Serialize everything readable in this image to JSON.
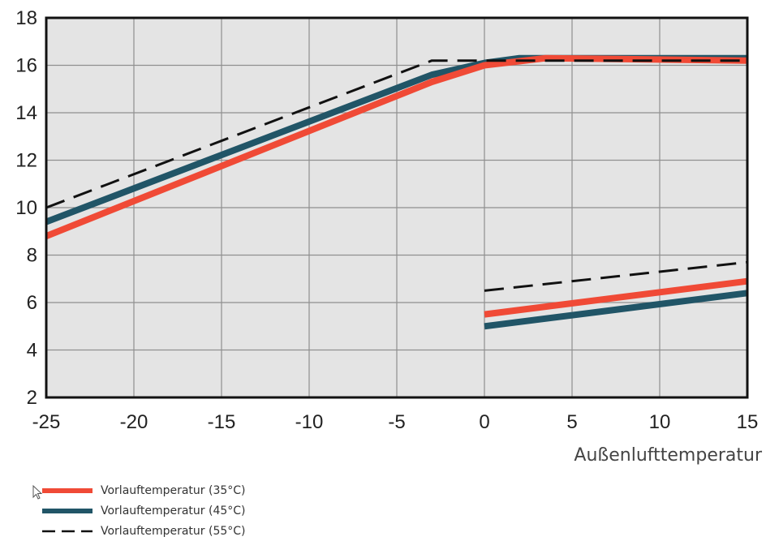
{
  "chart_data": {
    "type": "line",
    "xlabel": "Außenlufttemperatur",
    "ylabel": "",
    "xlim": [
      -25,
      15
    ],
    "ylim": [
      2,
      18
    ],
    "xticks": [
      -25,
      -20,
      -15,
      -10,
      -5,
      0,
      5,
      10,
      15
    ],
    "yticks": [
      2,
      4,
      6,
      8,
      10,
      12,
      14,
      16,
      18
    ],
    "grid": true,
    "legend_position": "bottom-left",
    "background": "#e4e4e4",
    "series": [
      {
        "name": "Vorlauftemperatur (35°C)",
        "color": "#f04a36",
        "style": "solid",
        "segments": [
          {
            "x": [
              -25,
              -3,
              0,
              3.5,
              15
            ],
            "y": [
              8.8,
              15.3,
              16.0,
              16.3,
              16.2
            ]
          },
          {
            "x": [
              0,
              15
            ],
            "y": [
              5.5,
              6.9
            ]
          }
        ]
      },
      {
        "name": "Vorlauftemperatur (45°C)",
        "color": "#215567",
        "style": "solid",
        "segments": [
          {
            "x": [
              -25,
              -3,
              0,
              2,
              15
            ],
            "y": [
              9.4,
              15.6,
              16.1,
              16.3,
              16.3
            ]
          },
          {
            "x": [
              0,
              15
            ],
            "y": [
              5.0,
              6.4
            ]
          }
        ]
      },
      {
        "name": "Vorlauftemperatur (55°C)",
        "color": "#111111",
        "style": "dashed",
        "segments": [
          {
            "x": [
              -25,
              -3,
              15
            ],
            "y": [
              10.0,
              16.2,
              16.2
            ]
          },
          {
            "x": [
              0,
              15
            ],
            "y": [
              6.5,
              7.7
            ]
          }
        ]
      }
    ]
  }
}
